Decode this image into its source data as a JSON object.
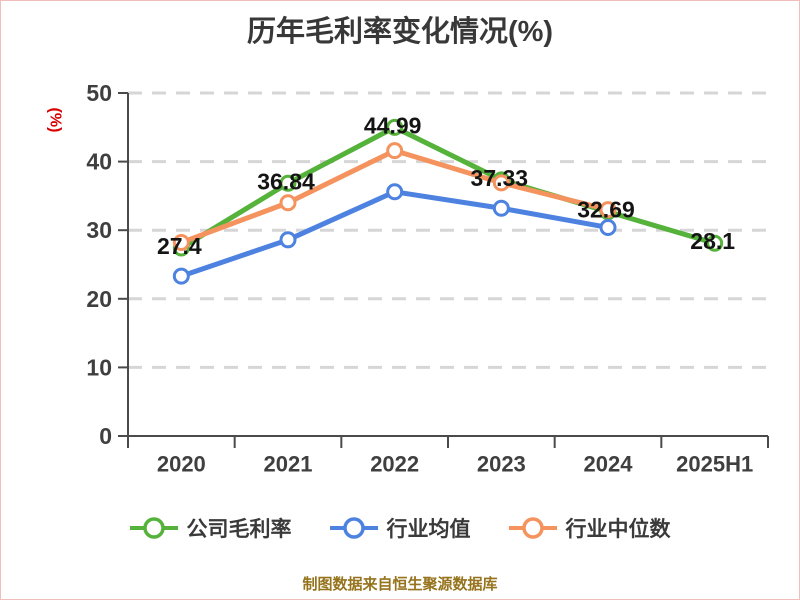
{
  "title": "历年毛利率变化情况(%)",
  "y_axis_name": "(%)",
  "caption": "制图数据来自恒生聚源数据库",
  "colors": {
    "company": "#55b23a",
    "industry_avg": "#4d82e0",
    "industry_median": "#f4935e",
    "grid": "#d6d6d6",
    "axis": "#4a4a4a",
    "tick_text": "#3f3f3f",
    "data_label": "#141414",
    "title_text": "#383838",
    "y_name_text": "#d90000",
    "caption_text": "#96731d"
  },
  "chart_data": {
    "type": "line",
    "title": "历年毛利率变化情况(%)",
    "categories": [
      "2020",
      "2021",
      "2022",
      "2023",
      "2024",
      "2025H1"
    ],
    "series": [
      {
        "name": "公司毛利率",
        "color": "#55b23a",
        "values": [
          27.4,
          36.84,
          44.99,
          37.33,
          32.69,
          28.1
        ],
        "labels": [
          "27.4",
          "36.84",
          "44.99",
          "37.33",
          "32.69",
          "28.1"
        ],
        "show_labels": true
      },
      {
        "name": "行业均值",
        "color": "#4d82e0",
        "values": [
          23.3,
          28.6,
          35.6,
          33.2,
          30.4,
          null
        ],
        "labels": [],
        "show_labels": false
      },
      {
        "name": "行业中位数",
        "color": "#f4935e",
        "values": [
          28.2,
          34.0,
          41.6,
          36.9,
          33.0,
          null
        ],
        "labels": [],
        "show_labels": false
      }
    ],
    "xlabel": "",
    "ylabel": "(%)",
    "ylim": [
      0,
      50
    ],
    "ytick_step": 10,
    "ytick_labels": [
      "0",
      "10",
      "20",
      "30",
      "40",
      "50"
    ],
    "grid": "dashed-horizontal",
    "legend_position": "bottom",
    "marker": "circle-white-fill"
  },
  "legend": {
    "items": [
      {
        "label": "公司毛利率",
        "color": "#55b23a"
      },
      {
        "label": "行业均值",
        "color": "#4d82e0"
      },
      {
        "label": "行业中位数",
        "color": "#f4935e"
      }
    ]
  }
}
